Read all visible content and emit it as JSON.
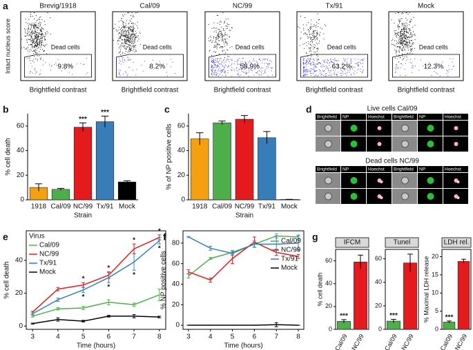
{
  "chart_data": [
    {
      "type": "flow",
      "panel": "a",
      "categories": [
        "Brevig/1918",
        "Cal/09",
        "NC/99",
        "Tx/91",
        "Mock"
      ],
      "values": [
        9.8,
        8.2,
        58.9,
        63.2,
        12.3
      ],
      "value_labels": [
        "9.8%",
        "8.2%",
        "58.9%",
        "63.2%",
        "12.3%"
      ],
      "gate_label": "Dead cells",
      "xlabel": "Brightfield contrast",
      "ylabel": "Intact nucleus score",
      "color": "#111111",
      "gate_color": "#4a4ad8"
    },
    {
      "type": "bar",
      "panel": "b",
      "categories": [
        "1918",
        "Cal/09",
        "NC/99",
        "Tx/91",
        "Mock"
      ],
      "values": [
        10,
        8.5,
        59,
        63.5,
        14.5
      ],
      "errors": [
        3,
        0.8,
        3.5,
        4.5,
        1
      ],
      "colors": [
        "#f5a10f",
        "#4daf4a",
        "#e41a1c",
        "#377eb8",
        "#000000"
      ],
      "bar_annotations": [
        null,
        null,
        "***",
        "***",
        null
      ],
      "xlabel": "Strain",
      "ylabel": "% cell death",
      "ylim": [
        0,
        70
      ],
      "yticks": [
        0,
        20,
        40,
        60
      ]
    },
    {
      "type": "bar",
      "panel": "c",
      "categories": [
        "1918",
        "Cal/09",
        "NC/99",
        "Tx/91",
        "Mock"
      ],
      "values": [
        49.5,
        62.5,
        65.5,
        50.5,
        0.3
      ],
      "errors": [
        5,
        1.5,
        3,
        5,
        0.1
      ],
      "colors": [
        "#f5a10f",
        "#4daf4a",
        "#e41a1c",
        "#377eb8",
        "#000000"
      ],
      "xlabel": "Strain",
      "ylabel": "% of NP positive cells",
      "ylim": [
        0,
        70
      ],
      "yticks": [
        0,
        20,
        40,
        60
      ]
    },
    {
      "type": "line",
      "panel": "e",
      "x": [
        3,
        4,
        5,
        6,
        7,
        8
      ],
      "xlim": [
        2.75,
        8.25
      ],
      "xticks": [
        3,
        4,
        5,
        6,
        7,
        8
      ],
      "ylim": [
        -2,
        58
      ],
      "yticks": [
        0,
        20,
        40
      ],
      "xlabel": "Time (hours)",
      "ylabel": "% cell death",
      "legend": "upper left",
      "legend_title": "Virus",
      "series": [
        {
          "name": "Cal/09",
          "color": "#4daf4a",
          "values": [
            6,
            10.5,
            11,
            14.5,
            13,
            19
          ],
          "errors": [
            0.5,
            0.7,
            1,
            1.5,
            1,
            3.5
          ]
        },
        {
          "name": "NC/99",
          "color": "#e41a1c",
          "values": [
            8.5,
            22.5,
            25,
            31,
            47,
            54
          ],
          "errors": [
            0.5,
            1,
            1.5,
            2,
            3,
            1.5
          ],
          "star_labels": [
            null,
            null,
            "*",
            "*",
            "*",
            "*"
          ],
          "star_position": "above"
        },
        {
          "name": "Tx/91",
          "color": "#377eb8",
          "values": [
            7.5,
            16,
            22,
            29.5,
            39,
            52
          ],
          "errors": [
            0.5,
            1,
            1.5,
            3,
            5,
            2
          ],
          "star_labels": [
            null,
            null,
            "*",
            "*",
            "*",
            "*"
          ],
          "star_position": "below"
        },
        {
          "name": "Mock",
          "color": "#000000",
          "values": [
            1.5,
            4,
            3,
            6,
            6,
            5.5
          ],
          "errors": [
            0.3,
            1,
            0.5,
            0.5,
            1,
            0.5
          ]
        }
      ]
    },
    {
      "type": "line",
      "panel": "f",
      "x": [
        3,
        4,
        5,
        6,
        7,
        8
      ],
      "xlim": [
        2.75,
        8.25
      ],
      "xticks": [
        3,
        4,
        5,
        6,
        7,
        8
      ],
      "ylim": [
        -4,
        92
      ],
      "yticks": [
        0,
        20,
        40,
        60,
        80
      ],
      "xlabel": "Time (hours)",
      "ylabel": "% NP positive cells",
      "legend": "lower right",
      "series": [
        {
          "name": "Cal/09",
          "color": "#4daf4a",
          "values": [
            48,
            65,
            71,
            79,
            87,
            86
          ],
          "errors": [
            2,
            1,
            2,
            3,
            2,
            2
          ]
        },
        {
          "name": "NC/99",
          "color": "#e41a1c",
          "values": [
            52,
            44,
            65,
            81,
            71,
            67
          ],
          "errors": [
            2,
            2,
            5,
            5,
            3,
            2
          ]
        },
        {
          "name": "Tx/91",
          "color": "#377eb8",
          "values": [
            86,
            75,
            70,
            79,
            79,
            80
          ],
          "errors": [
            0.5,
            2,
            2,
            3,
            8,
            7
          ]
        },
        {
          "name": "Mock",
          "color": "#000000",
          "values": [
            0,
            0,
            0,
            0,
            0.5,
            0
          ],
          "errors": [
            0,
            0,
            0,
            0,
            2,
            0
          ]
        }
      ]
    },
    {
      "type": "bar",
      "panel": "g",
      "strip_title": "IFCM",
      "categories": [
        "Cal/09",
        "NC/99"
      ],
      "values": [
        7,
        59
      ],
      "errors": [
        1.5,
        6
      ],
      "colors": [
        "#4daf4a",
        "#e41a1c"
      ],
      "bar_annotations": [
        "***",
        null
      ],
      "ylabel": "% cell death",
      "ylim": [
        0,
        70
      ],
      "yticks": [
        0,
        20,
        40,
        60
      ]
    },
    {
      "type": "bar",
      "strip_title": "Tunel",
      "categories": [
        "Cal/09",
        "NC/99"
      ],
      "values": [
        7,
        56.5
      ],
      "errors": [
        1.5,
        7.5
      ],
      "colors": [
        "#4daf4a",
        "#e41a1c"
      ],
      "bar_annotations": [
        "***",
        null
      ],
      "ylim": [
        0,
        68
      ],
      "yticks": [
        0,
        20,
        40,
        60
      ]
    },
    {
      "type": "bar",
      "strip_title": "LDH rel.",
      "categories": [
        "Cal/09",
        "NC/99"
      ],
      "values": [
        2,
        18.7
      ],
      "errors": [
        0.3,
        0.6
      ],
      "colors": [
        "#4daf4a",
        "#e41a1c"
      ],
      "bar_annotations": [
        "***",
        null
      ],
      "ylabel": "% Maximal LDH release",
      "ylim": [
        0,
        22
      ],
      "yticks": [
        0,
        5,
        10,
        15,
        20
      ]
    }
  ],
  "panel_d": {
    "panel": "d",
    "groups": [
      {
        "title": "Live cells Cal/09",
        "columns": [
          "Brightfield",
          "NP",
          "Hoechst",
          "Brightfield",
          "NP",
          "Hoechst"
        ]
      },
      {
        "title": "Dead cells NC/99",
        "columns": [
          "Brightfield",
          "NP",
          "Hoechst",
          "Brightfield",
          "NP",
          "Hoechst"
        ]
      }
    ]
  }
}
